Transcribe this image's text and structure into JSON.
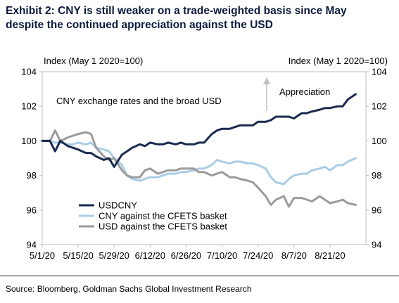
{
  "title_line1": "Exhibit 2: CNY is still weaker on a trade-weighted basis since May",
  "title_line2": "despite the continued appreciation against the USD",
  "source": "Source: Bloomberg, Goldman Sachs Global Investment Research",
  "chart_data": {
    "type": "line",
    "title": "",
    "left_axis_label": "Index (May 1 2020=100)",
    "right_axis_label": "Index (May 1 2020=100)",
    "inner_title": "CNY exchange rates and the broad USD",
    "annotation": "Appreciation",
    "ylim": [
      94,
      104
    ],
    "yticks": [
      94,
      96,
      98,
      100,
      102,
      104
    ],
    "y_right_ticks": [
      94,
      96,
      98,
      100,
      102,
      104
    ],
    "xlim": [
      "5/1/20",
      "9/4/20"
    ],
    "x_ticks": [
      "5/1/20",
      "5/15/20",
      "5/29/20",
      "6/12/20",
      "6/26/20",
      "7/10/20",
      "7/24/20",
      "8/7/20",
      "8/21/20"
    ],
    "grid": false,
    "legend_position": "bottom-left",
    "series": [
      {
        "name": "USDCNY",
        "color": "#1a2b4f",
        "x": [
          "5/1/20",
          "5/4/20",
          "5/6/20",
          "5/8/20",
          "5/11/20",
          "5/13/20",
          "5/15/20",
          "5/18/20",
          "5/20/20",
          "5/22/20",
          "5/25/20",
          "5/27/20",
          "5/29/20",
          "6/1/20",
          "6/3/20",
          "6/5/20",
          "6/8/20",
          "6/10/20",
          "6/12/20",
          "6/15/20",
          "6/17/20",
          "6/19/20",
          "6/22/20",
          "6/24/20",
          "6/26/20",
          "6/29/20",
          "7/1/20",
          "7/3/20",
          "7/6/20",
          "7/8/20",
          "7/10/20",
          "7/13/20",
          "7/15/20",
          "7/17/20",
          "7/20/20",
          "7/22/20",
          "7/24/20",
          "7/27/20",
          "7/29/20",
          "7/31/20",
          "8/3/20",
          "8/5/20",
          "8/7/20",
          "8/10/20",
          "8/12/20",
          "8/14/20",
          "8/17/20",
          "8/19/20",
          "8/21/20",
          "8/24/20",
          "8/26/20",
          "8/28/20",
          "8/31/20"
        ],
        "values": [
          100.0,
          100.0,
          99.4,
          100.0,
          99.7,
          99.6,
          99.5,
          99.3,
          99.3,
          99.1,
          98.9,
          99.0,
          98.5,
          99.2,
          99.4,
          99.6,
          99.8,
          99.7,
          99.9,
          99.8,
          99.8,
          99.9,
          99.8,
          99.9,
          99.8,
          99.8,
          99.9,
          99.9,
          100.4,
          100.6,
          100.7,
          100.7,
          100.8,
          100.9,
          100.9,
          100.9,
          101.1,
          101.1,
          101.2,
          101.4,
          101.4,
          101.4,
          101.3,
          101.6,
          101.6,
          101.7,
          101.8,
          101.9,
          101.9,
          102.0,
          102.0,
          102.4,
          102.7
        ]
      },
      {
        "name": "CNY against the CFETS basket",
        "color": "#a9cde6",
        "x": [
          "5/1/20",
          "5/4/20",
          "5/6/20",
          "5/8/20",
          "5/11/20",
          "5/13/20",
          "5/15/20",
          "5/18/20",
          "5/20/20",
          "5/22/20",
          "5/25/20",
          "5/27/20",
          "5/29/20",
          "6/1/20",
          "6/3/20",
          "6/5/20",
          "6/8/20",
          "6/10/20",
          "6/12/20",
          "6/15/20",
          "6/17/20",
          "6/19/20",
          "6/22/20",
          "6/24/20",
          "6/26/20",
          "6/29/20",
          "7/1/20",
          "7/3/20",
          "7/6/20",
          "7/8/20",
          "7/10/20",
          "7/13/20",
          "7/15/20",
          "7/17/20",
          "7/20/20",
          "7/22/20",
          "7/24/20",
          "7/27/20",
          "7/29/20",
          "7/31/20",
          "8/3/20",
          "8/5/20",
          "8/7/20",
          "8/10/20",
          "8/12/20",
          "8/14/20",
          "8/17/20",
          "8/19/20",
          "8/21/20",
          "8/24/20",
          "8/26/20",
          "8/28/20",
          "8/31/20"
        ],
        "values": [
          100.0,
          100.0,
          99.9,
          99.9,
          99.8,
          99.8,
          99.9,
          99.8,
          99.9,
          99.6,
          99.5,
          99.4,
          99.0,
          98.6,
          98.0,
          97.8,
          97.7,
          97.8,
          97.9,
          97.9,
          98.0,
          98.1,
          98.1,
          98.2,
          98.2,
          98.3,
          98.4,
          98.4,
          98.6,
          98.9,
          98.8,
          98.7,
          98.8,
          98.8,
          98.7,
          98.7,
          98.6,
          98.4,
          97.9,
          97.6,
          97.5,
          97.8,
          98.0,
          98.1,
          98.1,
          98.3,
          98.4,
          98.5,
          98.3,
          98.6,
          98.6,
          98.8,
          99.0
        ]
      },
      {
        "name": "USD against the CFETS basket",
        "color": "#9b9b9b",
        "x": [
          "5/1/20",
          "5/4/20",
          "5/6/20",
          "5/8/20",
          "5/11/20",
          "5/13/20",
          "5/15/20",
          "5/18/20",
          "5/20/20",
          "5/22/20",
          "5/25/20",
          "5/27/20",
          "5/29/20",
          "6/1/20",
          "6/3/20",
          "6/5/20",
          "6/8/20",
          "6/10/20",
          "6/12/20",
          "6/15/20",
          "6/17/20",
          "6/19/20",
          "6/22/20",
          "6/24/20",
          "6/26/20",
          "6/29/20",
          "7/1/20",
          "7/3/20",
          "7/6/20",
          "7/8/20",
          "7/10/20",
          "7/13/20",
          "7/15/20",
          "7/17/20",
          "7/20/20",
          "7/22/20",
          "7/24/20",
          "7/27/20",
          "7/29/20",
          "7/31/20",
          "8/3/20",
          "8/5/20",
          "8/7/20",
          "8/10/20",
          "8/12/20",
          "8/14/20",
          "8/17/20",
          "8/19/20",
          "8/21/20",
          "8/24/20",
          "8/26/20",
          "8/28/20",
          "8/31/20"
        ],
        "values": [
          100.0,
          100.0,
          100.6,
          100.0,
          100.2,
          100.3,
          100.4,
          100.5,
          100.4,
          99.6,
          99.1,
          98.9,
          99.0,
          98.3,
          98.0,
          97.9,
          97.9,
          98.3,
          98.4,
          98.1,
          98.2,
          98.3,
          98.3,
          98.4,
          98.4,
          98.4,
          98.2,
          98.2,
          98.0,
          98.1,
          98.2,
          97.9,
          97.9,
          97.8,
          97.7,
          97.6,
          97.3,
          96.8,
          96.3,
          96.6,
          96.8,
          96.2,
          96.7,
          96.7,
          96.6,
          96.5,
          96.8,
          96.6,
          96.4,
          96.5,
          96.6,
          96.4,
          96.3
        ]
      }
    ]
  }
}
